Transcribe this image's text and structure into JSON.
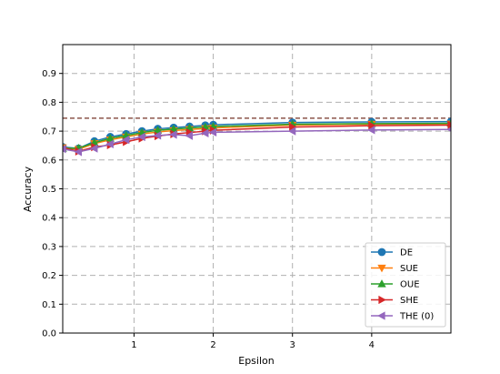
{
  "chart_data": {
    "type": "line",
    "xlabel": "Epsilon",
    "ylabel": "Accuracy",
    "xlim": [
      0.1,
      5.0
    ],
    "ylim": [
      0.0,
      1.0
    ],
    "xticks": [
      "1",
      "2",
      "3",
      "4"
    ],
    "yticks": [
      "0.0",
      "0.1",
      "0.2",
      "0.3",
      "0.4",
      "0.5",
      "0.6",
      "0.7",
      "0.8",
      "0.9"
    ],
    "grid": true,
    "legend_position": "lower-right",
    "reference_line": {
      "y": 0.745,
      "color": "#8c564b"
    },
    "x": [
      0.1,
      0.3,
      0.5,
      0.7,
      0.9,
      1.1,
      1.3,
      1.5,
      1.7,
      1.9,
      2.0,
      3.0,
      4.0,
      5.0
    ],
    "series": [
      {
        "name": "DE",
        "color": "#1f77b4",
        "marker": "circle",
        "values": [
          0.645,
          0.64,
          0.665,
          0.68,
          0.69,
          0.7,
          0.708,
          0.712,
          0.716,
          0.72,
          0.722,
          0.73,
          0.732,
          0.733
        ]
      },
      {
        "name": "SUE",
        "color": "#ff7f0e",
        "marker": "triangle-down",
        "values": [
          0.643,
          0.637,
          0.657,
          0.67,
          0.68,
          0.69,
          0.697,
          0.702,
          0.706,
          0.709,
          0.711,
          0.721,
          0.724,
          0.725
        ]
      },
      {
        "name": "OUE",
        "color": "#2ca02c",
        "marker": "triangle-up",
        "values": [
          0.64,
          0.641,
          0.66,
          0.675,
          0.685,
          0.695,
          0.703,
          0.707,
          0.711,
          0.714,
          0.716,
          0.724,
          0.726,
          0.727
        ]
      },
      {
        "name": "SHE",
        "color": "#d62728",
        "marker": "triangle-right",
        "values": [
          0.642,
          0.63,
          0.645,
          0.652,
          0.663,
          0.675,
          0.683,
          0.69,
          0.695,
          0.7,
          0.703,
          0.714,
          0.719,
          0.721
        ]
      },
      {
        "name": "THE (0)",
        "color": "#9467bd",
        "marker": "triangle-left",
        "values": [
          0.638,
          0.628,
          0.64,
          0.655,
          0.67,
          0.68,
          0.685,
          0.688,
          0.684,
          0.693,
          0.696,
          0.7,
          0.704,
          0.706
        ]
      }
    ]
  }
}
